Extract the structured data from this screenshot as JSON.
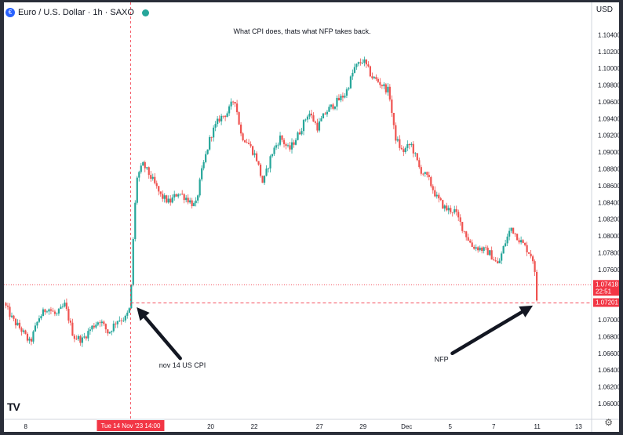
{
  "legend": {
    "symbol": "Euro / U.S. Dollar · 1h · SAXO"
  },
  "currency": "USD",
  "logo": "TV",
  "chart_data": {
    "type": "candlestick",
    "title": "What CPI does, thats what NFP takes back.",
    "ylim": [
      1.0585,
      1.106
    ],
    "y_ticks": [
      "1.10400",
      "1.10200",
      "1.10000",
      "1.09800",
      "1.09600",
      "1.09400",
      "1.09200",
      "1.09000",
      "1.08800",
      "1.08600",
      "1.08400",
      "1.08200",
      "1.08000",
      "1.07800",
      "1.07600",
      "1.07400",
      "1.07200",
      "1.07000",
      "1.06800",
      "1.06600",
      "1.06400",
      "1.06200",
      "1.06000"
    ],
    "x_ticks": [
      "8",
      "1",
      "20",
      "22",
      "27",
      "29",
      "Dec",
      "5",
      "7",
      "11",
      "13"
    ],
    "x_tick_positions": [
      1.0,
      4.9,
      9.5,
      11.5,
      14.5,
      16.5,
      18.5,
      20.5,
      22.5,
      24.5,
      26.4
    ],
    "x_range": [
      0,
      27
    ],
    "price_path": [
      [
        0.0,
        1.072
      ],
      [
        0.4,
        1.07
      ],
      [
        0.8,
        1.0688
      ],
      [
        1.2,
        1.0672
      ],
      [
        1.6,
        1.0702
      ],
      [
        2.0,
        1.0715
      ],
      [
        2.4,
        1.0705
      ],
      [
        2.8,
        1.0718
      ],
      [
        3.2,
        1.068
      ],
      [
        3.6,
        1.0676
      ],
      [
        4.0,
        1.069
      ],
      [
        4.4,
        1.07
      ],
      [
        4.8,
        1.0684
      ],
      [
        5.2,
        1.07
      ],
      [
        5.6,
        1.0702
      ],
      [
        5.82,
        1.0716
      ],
      [
        5.9,
        1.0778
      ],
      [
        6.1,
        1.087
      ],
      [
        6.4,
        1.0885
      ],
      [
        6.8,
        1.0868
      ],
      [
        7.2,
        1.0848
      ],
      [
        7.6,
        1.084
      ],
      [
        8.0,
        1.0852
      ],
      [
        8.4,
        1.0845
      ],
      [
        8.8,
        1.0835
      ],
      [
        9.1,
        1.0878
      ],
      [
        9.5,
        1.092
      ],
      [
        9.9,
        1.094
      ],
      [
        10.3,
        1.0948
      ],
      [
        10.6,
        1.0965
      ],
      [
        10.9,
        1.092
      ],
      [
        11.2,
        1.0912
      ],
      [
        11.6,
        1.0893
      ],
      [
        11.9,
        1.0862
      ],
      [
        12.3,
        1.0898
      ],
      [
        12.7,
        1.0918
      ],
      [
        13.1,
        1.0902
      ],
      [
        13.6,
        1.0925
      ],
      [
        14.0,
        1.0948
      ],
      [
        14.4,
        1.093
      ],
      [
        14.8,
        1.0948
      ],
      [
        15.2,
        1.0958
      ],
      [
        15.7,
        1.097
      ],
      [
        16.1,
        1.1
      ],
      [
        16.5,
        1.101
      ],
      [
        16.9,
        1.099
      ],
      [
        17.3,
        1.0982
      ],
      [
        17.7,
        1.0972
      ],
      [
        17.95,
        1.092
      ],
      [
        18.3,
        1.09
      ],
      [
        18.7,
        1.091
      ],
      [
        19.1,
        1.088
      ],
      [
        19.5,
        1.0868
      ],
      [
        19.9,
        1.0845
      ],
      [
        20.3,
        1.0832
      ],
      [
        20.7,
        1.083
      ],
      [
        21.1,
        1.0808
      ],
      [
        21.5,
        1.0788
      ],
      [
        21.9,
        1.0785
      ],
      [
        22.3,
        1.078
      ],
      [
        22.7,
        1.0765
      ],
      [
        23.0,
        1.079
      ],
      [
        23.3,
        1.081
      ],
      [
        23.7,
        1.0795
      ],
      [
        24.0,
        1.0785
      ],
      [
        24.2,
        1.0778
      ],
      [
        24.35,
        1.077
      ],
      [
        24.42,
        1.0742
      ],
      [
        24.5,
        1.0718
      ]
    ],
    "levels": [
      {
        "value": 1.07201,
        "label": "1.07201",
        "style": "dashed"
      },
      {
        "value": 1.07418,
        "label": "1.07418",
        "sublabel": "22:51",
        "style": "dotted"
      }
    ],
    "vertical_marker": {
      "x": 5.82,
      "label": "Tue 14 Nov '23   14:00"
    },
    "annotations": [
      {
        "text": "nov 14 US CPI",
        "x": 8.2,
        "y": 1.0643
      },
      {
        "text": "NFP",
        "x": 20.1,
        "y": 1.065
      }
    ],
    "arrows": [
      {
        "from": [
          8.1,
          1.0654
        ],
        "to": [
          6.1,
          1.0715
        ]
      },
      {
        "from": [
          20.6,
          1.066
        ],
        "to": [
          24.3,
          1.0717
        ]
      }
    ],
    "colors": {
      "up": "#26a69a",
      "down": "#ef5350",
      "line": "#f23645",
      "axis_text": "#131722"
    }
  }
}
